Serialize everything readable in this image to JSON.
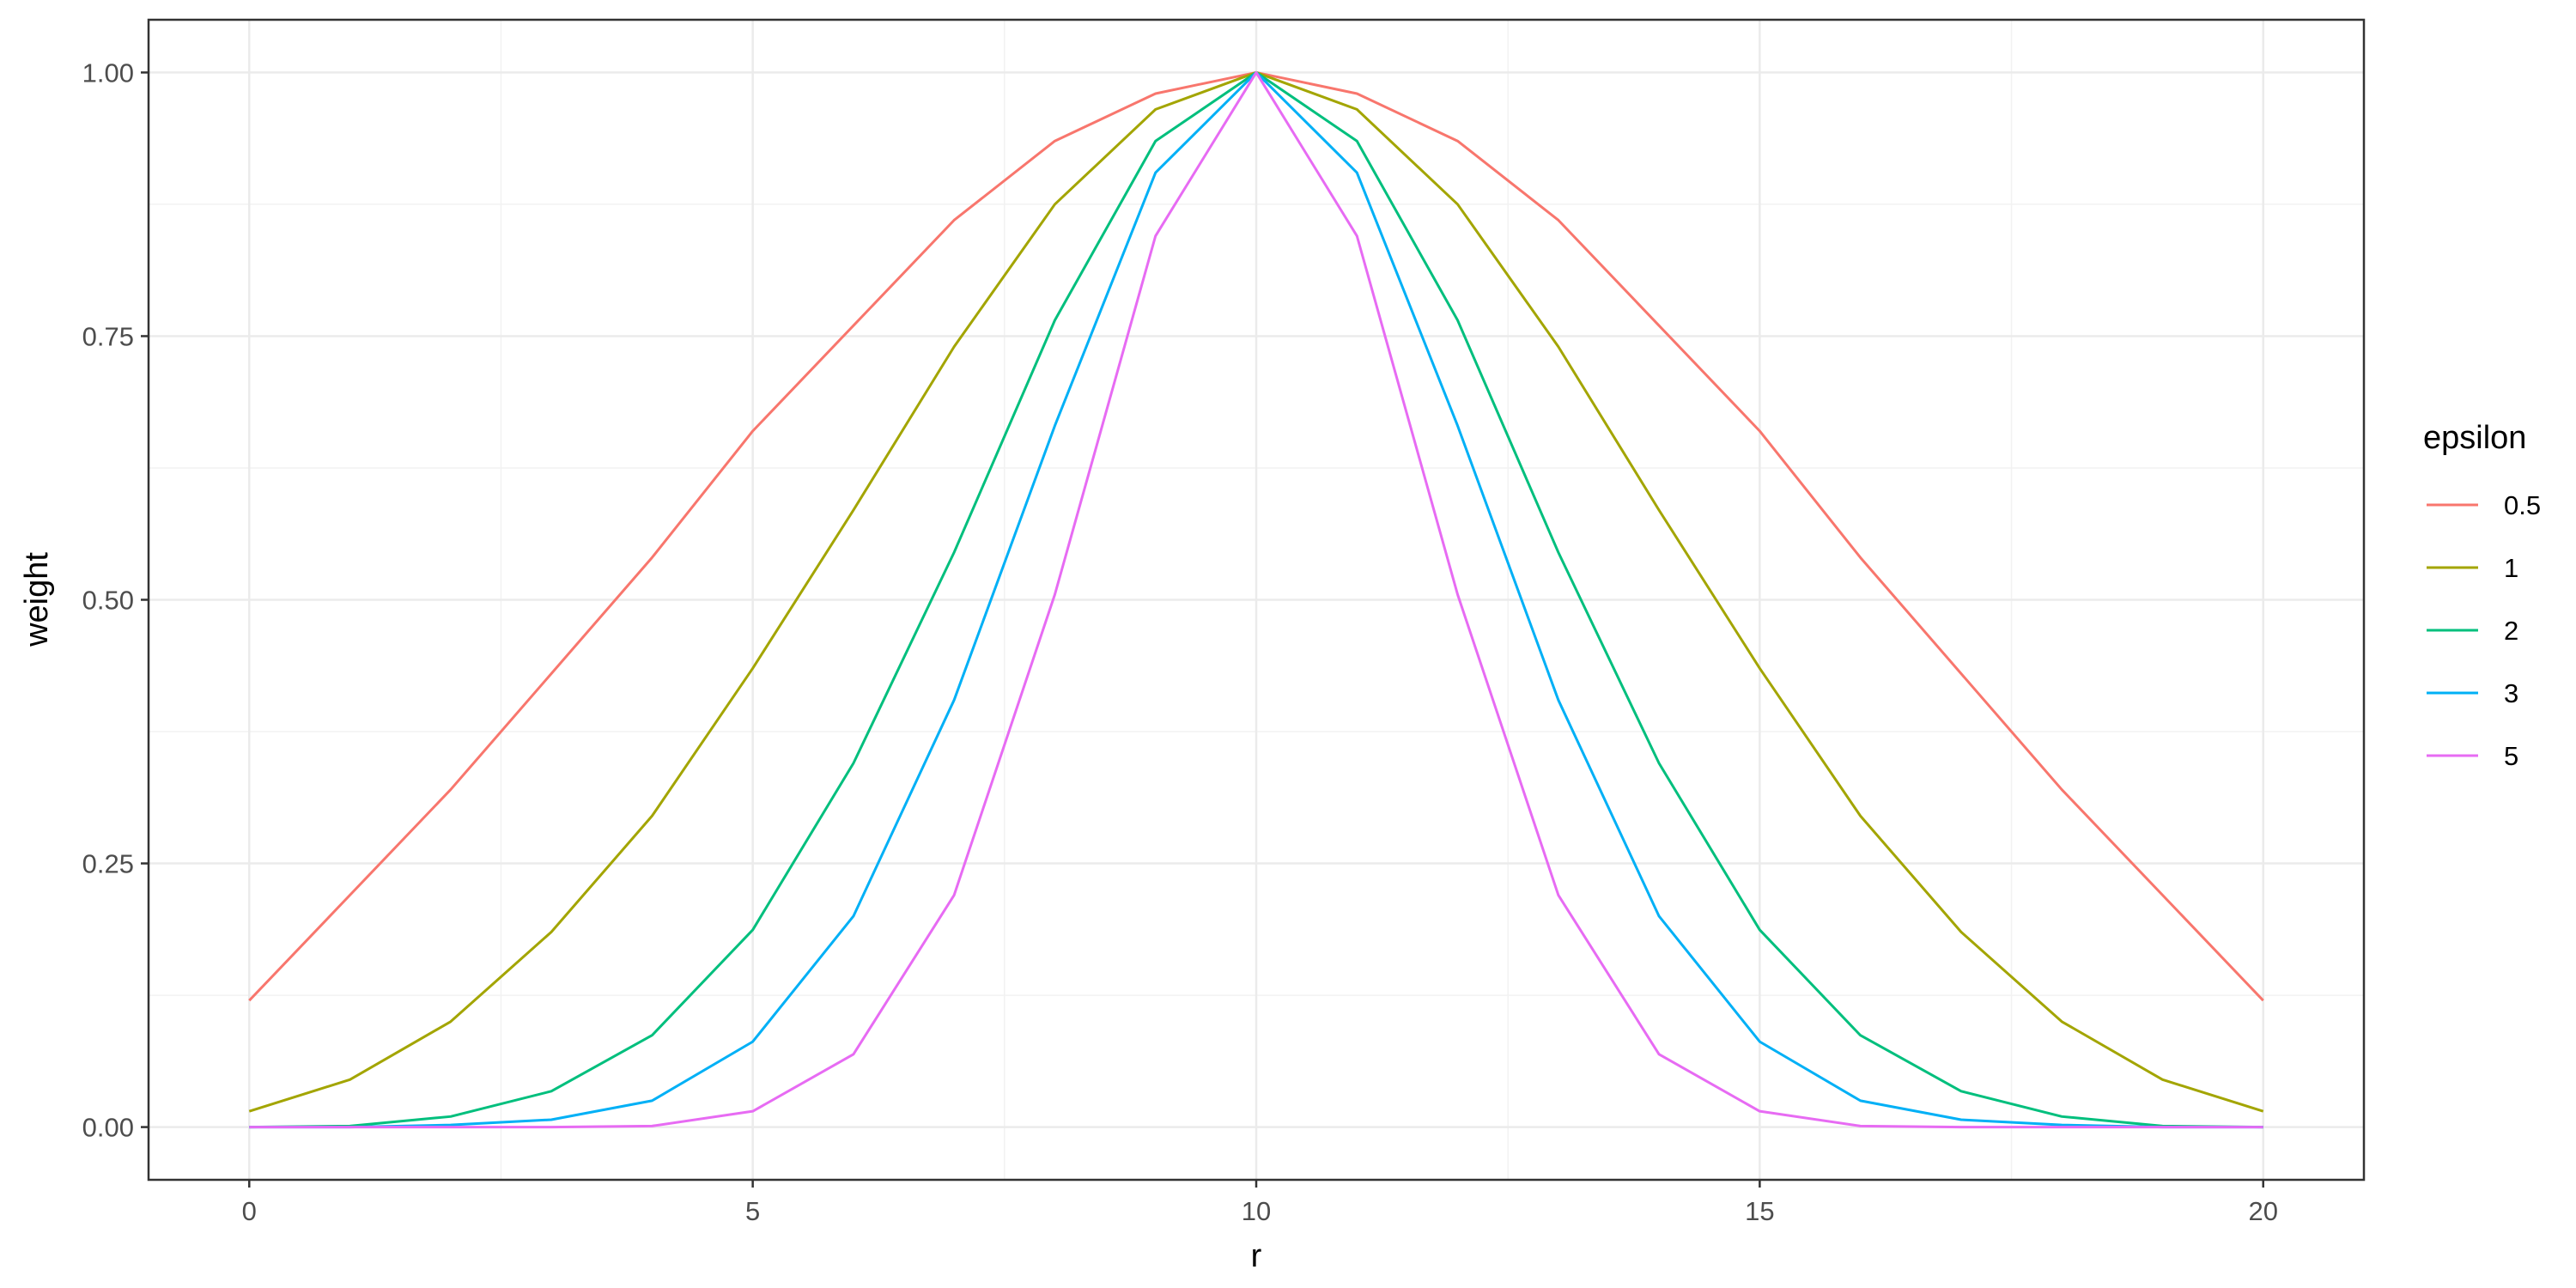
{
  "chart_data": {
    "type": "line",
    "xlabel": "r",
    "ylabel": "weight",
    "xlim": [
      -1,
      21
    ],
    "ylim": [
      -0.05,
      1.05
    ],
    "x_ticks": [
      0,
      5,
      10,
      15,
      20
    ],
    "x_tick_labels": [
      "0",
      "5",
      "10",
      "15",
      "20"
    ],
    "y_ticks": [
      0,
      0.25,
      0.5,
      0.75,
      1.0
    ],
    "y_tick_labels": [
      "0.00",
      "0.25",
      "0.50",
      "0.75",
      "1.00"
    ],
    "grid": true,
    "legend": {
      "title": "epsilon",
      "position": "right"
    },
    "x": [
      0,
      1,
      2,
      3,
      4,
      5,
      6,
      7,
      8,
      9,
      10,
      11,
      12,
      13,
      14,
      15,
      16,
      17,
      18,
      19,
      20
    ],
    "series": [
      {
        "name": "0.5",
        "color": "#F8766D",
        "values": [
          0.12,
          0.22,
          0.32,
          0.43,
          0.54,
          0.66,
          0.76,
          0.86,
          0.935,
          0.98,
          1.0,
          0.98,
          0.935,
          0.86,
          0.76,
          0.66,
          0.54,
          0.43,
          0.32,
          0.22,
          0.12
        ]
      },
      {
        "name": "1",
        "color": "#A3A500",
        "values": [
          0.015,
          0.045,
          0.1,
          0.185,
          0.295,
          0.435,
          0.585,
          0.74,
          0.875,
          0.965,
          1.0,
          0.965,
          0.875,
          0.74,
          0.585,
          0.435,
          0.295,
          0.185,
          0.1,
          0.045,
          0.015
        ]
      },
      {
        "name": "2",
        "color": "#00BF7D",
        "values": [
          0.0,
          0.001,
          0.01,
          0.034,
          0.087,
          0.187,
          0.345,
          0.545,
          0.765,
          0.935,
          1.0,
          0.935,
          0.765,
          0.545,
          0.345,
          0.187,
          0.087,
          0.034,
          0.01,
          0.001,
          0.0
        ]
      },
      {
        "name": "3",
        "color": "#00B0F6",
        "values": [
          0.0,
          0.0,
          0.002,
          0.007,
          0.025,
          0.081,
          0.2,
          0.405,
          0.665,
          0.905,
          1.0,
          0.905,
          0.665,
          0.405,
          0.2,
          0.081,
          0.025,
          0.007,
          0.002,
          0.0,
          0.0
        ]
      },
      {
        "name": "5",
        "color": "#E76BF3",
        "values": [
          0.0,
          0.0,
          0.0,
          0.0,
          0.001,
          0.015,
          0.069,
          0.22,
          0.505,
          0.845,
          1.0,
          0.845,
          0.505,
          0.22,
          0.069,
          0.015,
          0.001,
          0.0,
          0.0,
          0.0,
          0.0
        ]
      }
    ]
  }
}
